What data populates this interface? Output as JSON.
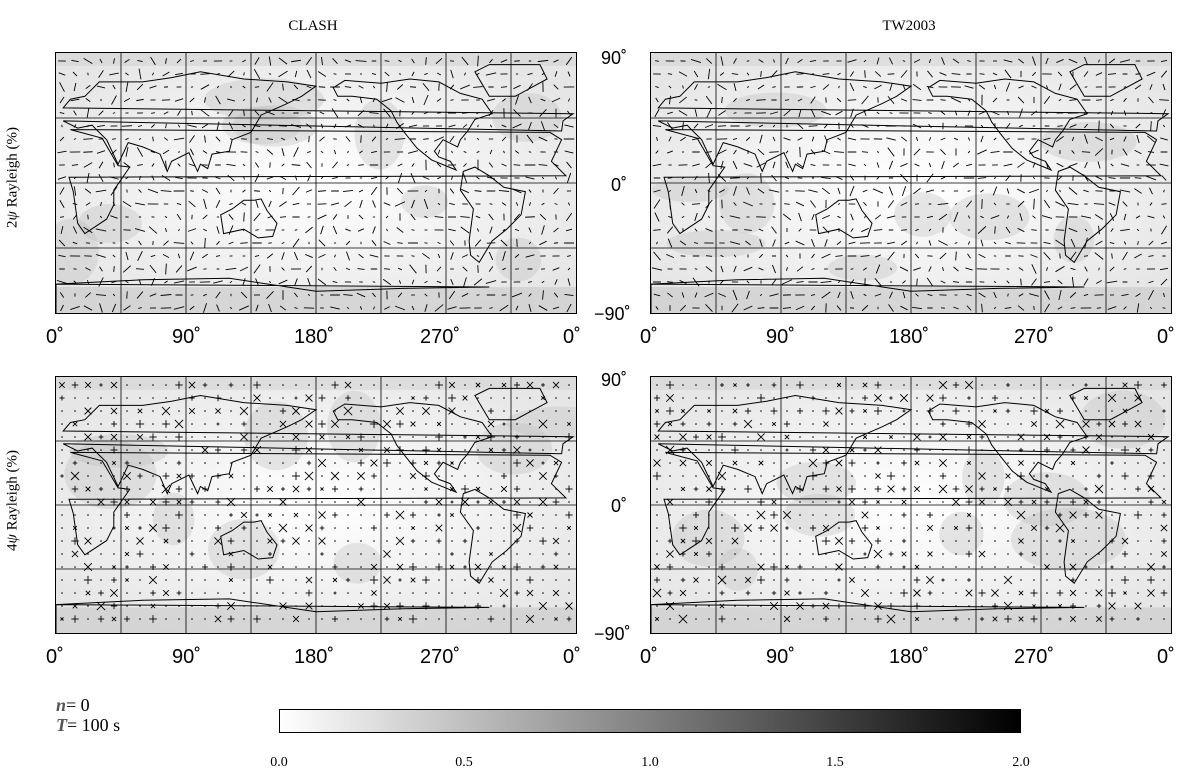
{
  "columns": [
    "CLASH",
    "TW2003"
  ],
  "rows": [
    "2ψ Rayleigh (%)",
    "4ψ Rayleigh (%)"
  ],
  "row_label_parts": [
    {
      "prefix": "2",
      "psi": "ψ",
      "suffix": " Rayleigh (%)"
    },
    {
      "prefix": "4",
      "psi": "ψ",
      "suffix": " Rayleigh (%)"
    }
  ],
  "lon_ticks": [
    "0˚",
    "90˚",
    "180˚",
    "270˚",
    "0˚"
  ],
  "lat_ticks": [
    "90˚",
    "0˚",
    "−90˚"
  ],
  "legend": {
    "n_symbol": "n",
    "n_value": "= 0",
    "t_symbol": "T",
    "t_value": "= 100 s"
  },
  "colorbar": {
    "ticks": [
      "0.0",
      "0.5",
      "1.0",
      "1.5",
      "2.0"
    ],
    "min": 0.0,
    "max": 2.0,
    "gradient_start": "#ffffff",
    "gradient_end": "#000000"
  },
  "colors": {
    "land_outline": "#000000",
    "grid": "#000000",
    "background_shade": "#d9d9d9"
  },
  "panels": [
    {
      "id": "clash-2psi",
      "column": "CLASH",
      "row": "2ψ",
      "symbol": "bar"
    },
    {
      "id": "tw2003-2psi",
      "column": "TW2003",
      "row": "2ψ",
      "symbol": "bar"
    },
    {
      "id": "clash-4psi",
      "column": "CLASH",
      "row": "4ψ",
      "symbol": "cross"
    },
    {
      "id": "tw2003-4psi",
      "column": "TW2003",
      "row": "4ψ",
      "symbol": "cross"
    }
  ]
}
